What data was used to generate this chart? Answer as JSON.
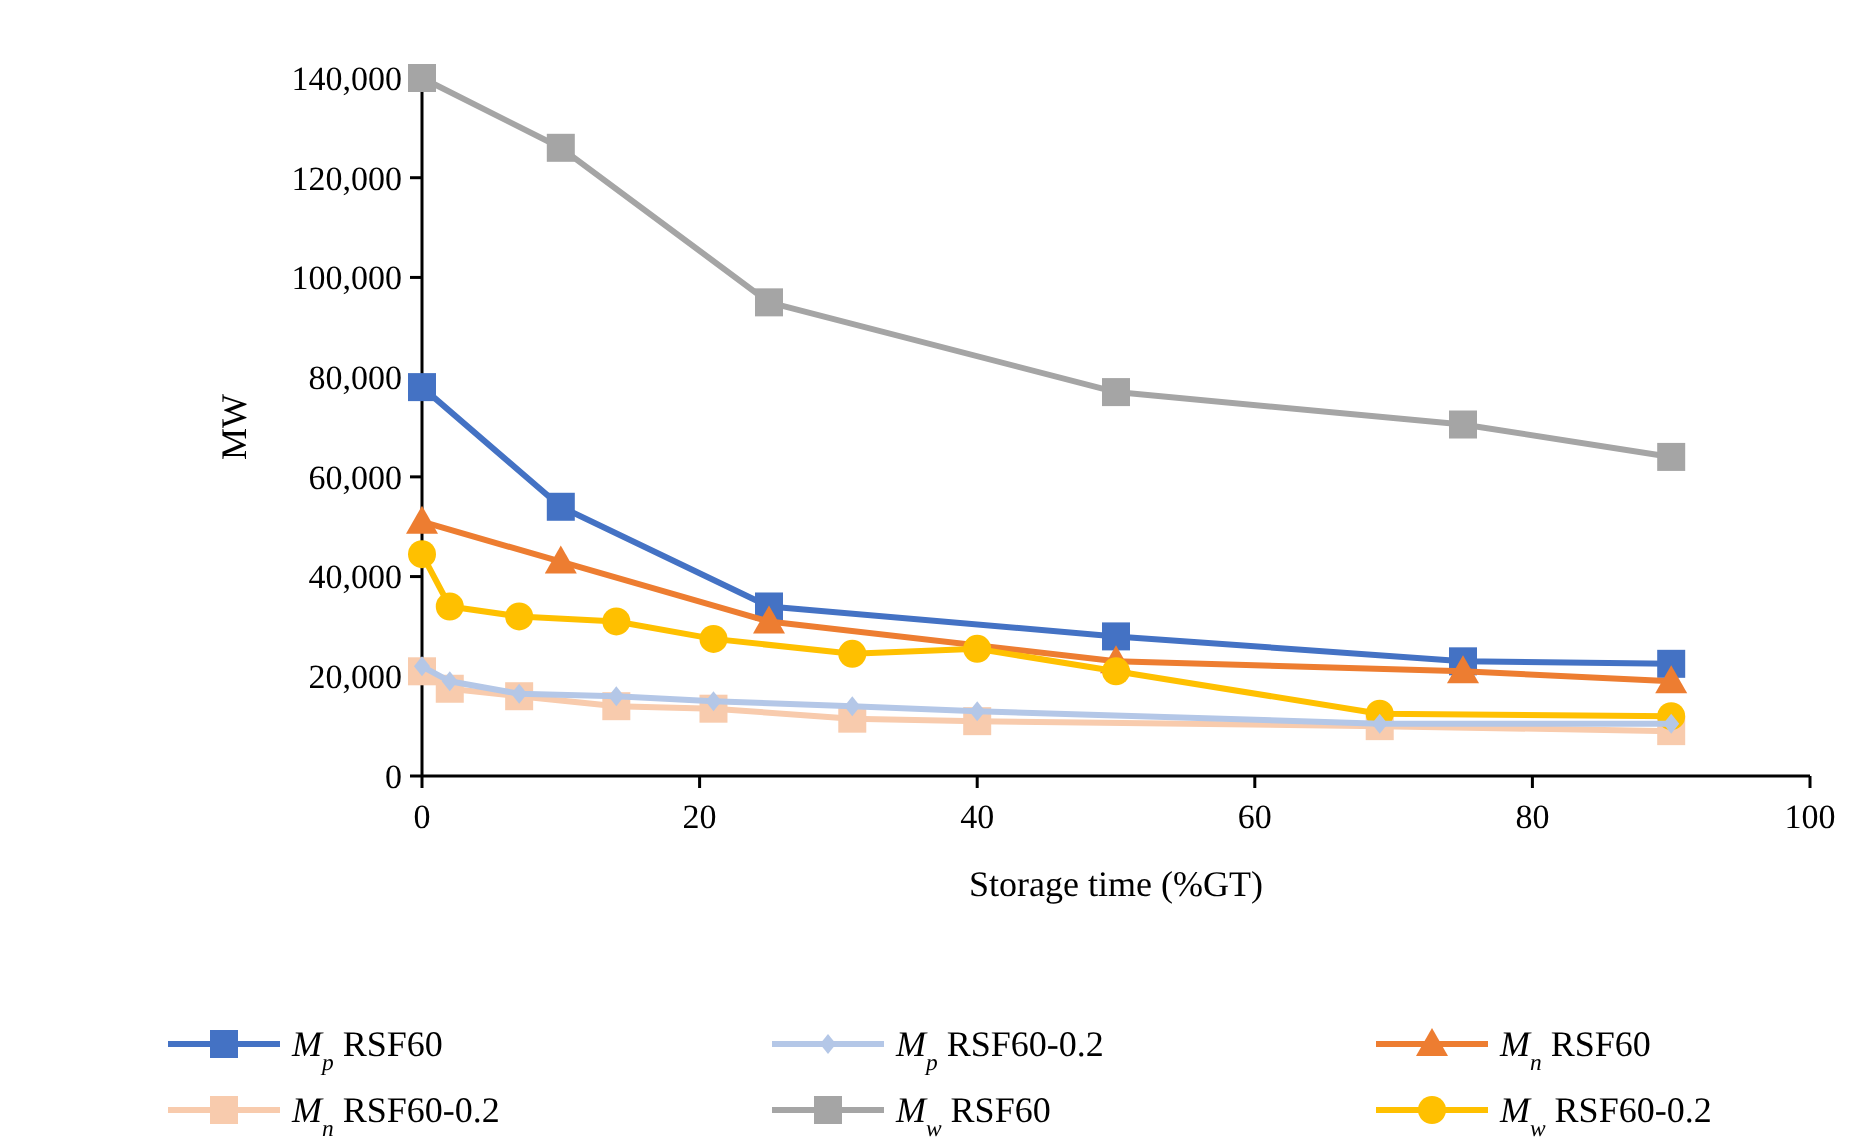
{
  "chart_data": {
    "type": "line",
    "xlabel": "Storage time (%GT)",
    "ylabel": "MW",
    "xlim": [
      0,
      100
    ],
    "xticks": [
      0,
      20,
      40,
      60,
      80,
      100
    ],
    "ylim": [
      0,
      140000
    ],
    "yticks": [
      {
        "value": 0,
        "label": "0"
      },
      {
        "value": 20000,
        "label": "20,000"
      },
      {
        "value": 40000,
        "label": "40,000"
      },
      {
        "value": 60000,
        "label": "60,000"
      },
      {
        "value": 80000,
        "label": "80,000"
      },
      {
        "value": 100000,
        "label": "100,000"
      },
      {
        "value": 120000,
        "label": "120,000"
      },
      {
        "value": 140000,
        "label": "140,000"
      }
    ],
    "legend": "bottom",
    "grid": false,
    "series": [
      {
        "name": "M$_{p}$ RSF60",
        "color": "#4472c4",
        "marker": "square",
        "x": [
          0,
          10,
          25,
          50,
          75,
          90
        ],
        "values": [
          78000,
          54000,
          34000,
          28000,
          23000,
          22500
        ]
      },
      {
        "name": "M$_{p}$ RSF60-0.2",
        "color": "#b4c7e7",
        "marker": "diamond",
        "x": [
          0,
          2,
          7,
          14,
          21,
          31,
          40,
          69,
          90
        ],
        "values": [
          22000,
          19000,
          16500,
          16000,
          15000,
          14000,
          13000,
          10500,
          10500
        ]
      },
      {
        "name": "M$_{n}$ RSF60",
        "color": "#ed7d31",
        "marker": "triangle",
        "x": [
          0,
          10,
          25,
          50,
          75,
          90
        ],
        "values": [
          51000,
          43000,
          31000,
          23000,
          21000,
          19000
        ]
      },
      {
        "name": "M$_{n}$ RSF60-0.2",
        "color": "#f8cbad",
        "marker": "square",
        "x": [
          0,
          2,
          7,
          14,
          21,
          31,
          40,
          69,
          90
        ],
        "values": [
          21000,
          17500,
          16000,
          14000,
          13500,
          11500,
          11000,
          10000,
          9000
        ]
      },
      {
        "name": "M$_{w}$ RSF60",
        "color": "#a5a5a5",
        "marker": "square",
        "x": [
          0,
          10,
          25,
          50,
          75,
          90
        ],
        "values": [
          140000,
          126000,
          95000,
          77000,
          70500,
          64000
        ]
      },
      {
        "name": "M$_{w}$ RSF60-0.2",
        "color": "#ffc000",
        "marker": "circle",
        "x": [
          0,
          2,
          7,
          14,
          21,
          31,
          40,
          50,
          69,
          90
        ],
        "values": [
          44500,
          34000,
          32000,
          31000,
          27500,
          24500,
          25500,
          21000,
          12500,
          12000
        ]
      }
    ]
  }
}
